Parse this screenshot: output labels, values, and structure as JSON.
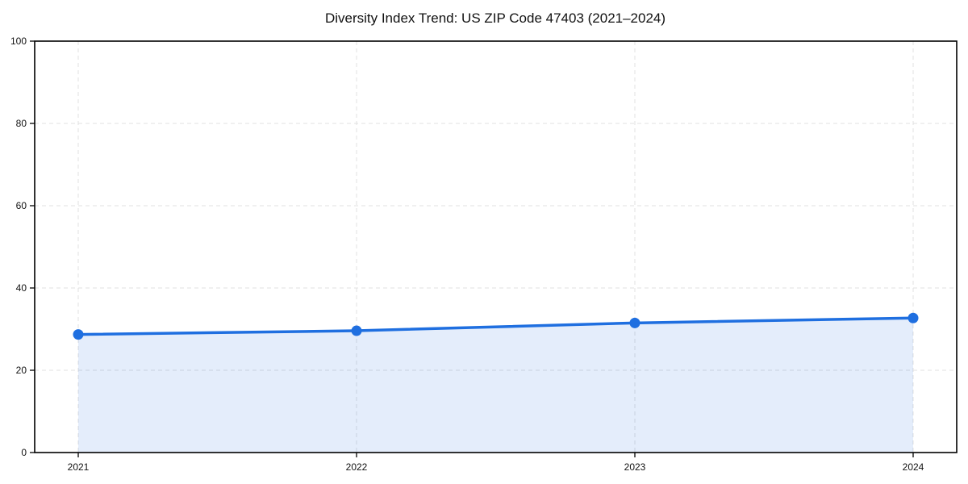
{
  "page": {
    "background": "#ffffff"
  },
  "chart_data": {
    "type": "area",
    "title": "Diversity Index Trend: US ZIP Code 47403 (2021–2024)",
    "categories": [
      "2021",
      "2022",
      "2023",
      "2024"
    ],
    "series": [
      {
        "name": "Diversity Index",
        "values": [
          28.7,
          29.6,
          31.5,
          32.7
        ]
      }
    ],
    "xlabel": "",
    "ylabel": "",
    "ylim": [
      0,
      100
    ],
    "yticks": [
      0,
      20,
      40,
      60,
      80,
      100
    ],
    "grid": true,
    "grid_style": "dashed",
    "legend_position": "none",
    "marker": "circle",
    "colors": {
      "line": "#1f6fe0",
      "marker": "#1f6fe0",
      "fill": "rgba(31,111,224,0.12)",
      "grid": "#e0e0e0",
      "axis": "#000000",
      "text": "#111111"
    }
  }
}
